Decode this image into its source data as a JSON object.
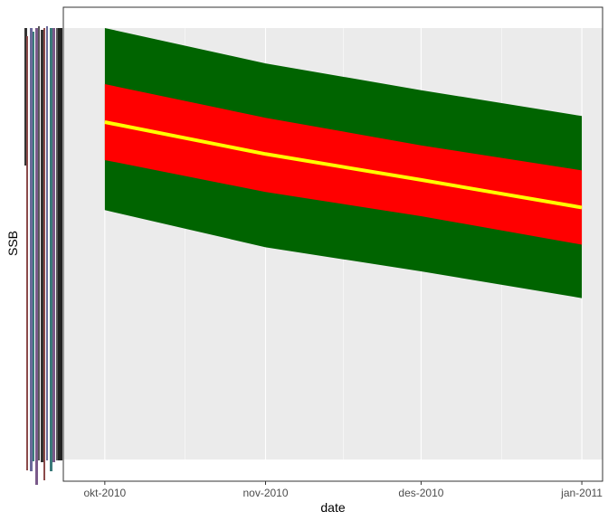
{
  "chart_data": {
    "type": "area",
    "title": "",
    "xlabel": "date",
    "ylabel": "SSB",
    "x_ticks": [
      "okt-2010",
      "nov-2010",
      "des-2010",
      "jan-2011"
    ],
    "x": [
      "2010-10-01",
      "2010-11-01",
      "2010-12-01",
      "2011-01-01"
    ],
    "xlim": [
      "2010-09-23",
      "2011-01-05"
    ],
    "ylim": [
      0,
      100
    ],
    "grid": true,
    "legend": "none",
    "series": [
      {
        "role": "outer-band",
        "color": "#006400",
        "lower": [
          57.8,
          49.2,
          43.6,
          37.4
        ],
        "upper": [
          100,
          91.8,
          85.6,
          79.6
        ]
      },
      {
        "role": "inner-band",
        "color": "#ff0000",
        "lower": [
          69.4,
          62.0,
          56.4,
          49.8
        ],
        "upper": [
          87.0,
          79.2,
          72.8,
          67.0
        ]
      },
      {
        "role": "median-line",
        "color": "#ffff00",
        "values": [
          78.2,
          70.8,
          64.8,
          58.4
        ]
      }
    ],
    "overplotted_y_axis_colors": [
      "#333333",
      "#8b4a4a",
      "#6a6a9a",
      "#3a7a7a",
      "#7a5a8a",
      "#555555"
    ]
  }
}
